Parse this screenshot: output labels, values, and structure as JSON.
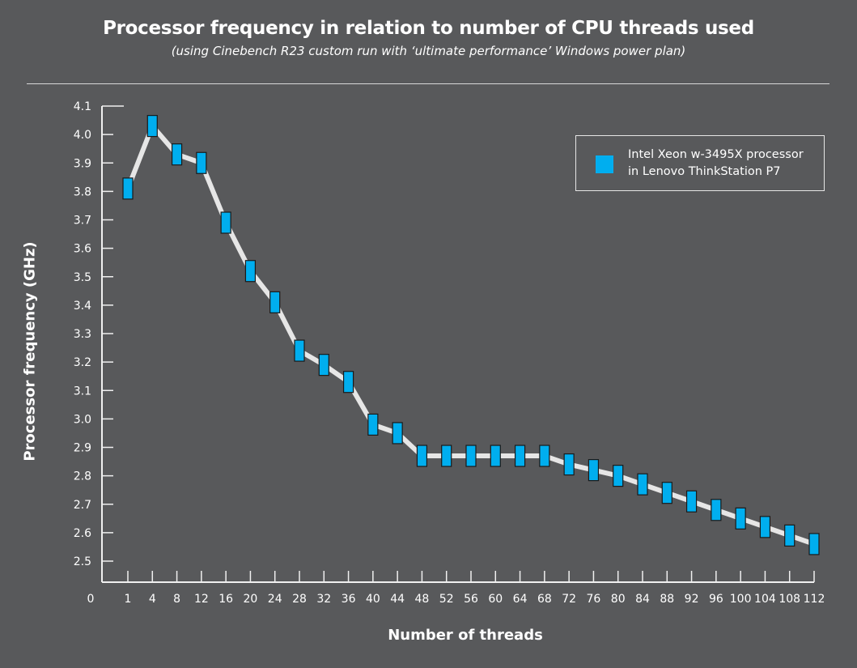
{
  "chart_data": {
    "type": "line",
    "title": "Processor frequency in relation to number of CPU threads used",
    "subtitle": "(using Cinebench R23 custom run with ‘ultimate performance’ Windows power plan)",
    "xlabel": "Number of threads",
    "ylabel": "Processor frequency (GHz)",
    "x_origin_label": "0",
    "categories": [
      1,
      4,
      8,
      12,
      16,
      20,
      24,
      28,
      32,
      36,
      40,
      44,
      48,
      52,
      56,
      60,
      64,
      68,
      72,
      76,
      80,
      84,
      88,
      92,
      96,
      100,
      104,
      108,
      112
    ],
    "yticks": [
      "2.5",
      "2.6",
      "2.7",
      "2.8",
      "2.9",
      "3.0",
      "3.1",
      "3.2",
      "3.3",
      "3.4",
      "3.5",
      "3.6",
      "3.7",
      "3.8",
      "3.9",
      "4.0",
      "4.1"
    ],
    "ylim": [
      2.5,
      4.1
    ],
    "grid": false,
    "legend_placement": "top-right",
    "series": [
      {
        "name": "Intel Xeon w-3495X processor in Lenovo ThinkStation P7",
        "legend_lines": [
          "Intel Xeon w-3495X processor",
          "in Lenovo ThinkStation P7"
        ],
        "color": "#00aeef",
        "line_color": "#e6e6e6",
        "values": [
          3.81,
          4.03,
          3.93,
          3.9,
          3.69,
          3.52,
          3.41,
          3.24,
          3.19,
          3.13,
          2.98,
          2.95,
          2.87,
          2.87,
          2.87,
          2.87,
          2.87,
          2.87,
          2.84,
          2.82,
          2.8,
          2.77,
          2.74,
          2.71,
          2.68,
          2.65,
          2.62,
          2.59,
          2.56
        ]
      }
    ]
  }
}
